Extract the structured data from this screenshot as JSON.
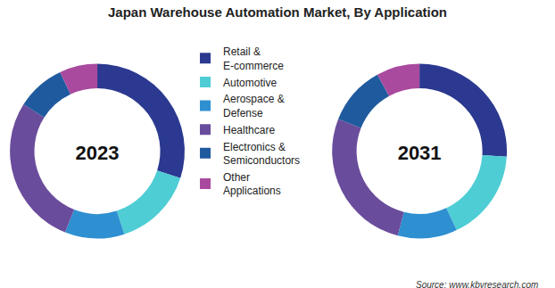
{
  "title": "Japan Warehouse Automation Market, By Application",
  "source": "Source: www.kbvresearch.com",
  "chart_data": [
    {
      "type": "pie",
      "title": "2023",
      "categories": [
        "Retail & E-commerce",
        "Automotive",
        "Aerospace & Defense",
        "Healthcare",
        "Electronics & Semiconductors",
        "Other Applications"
      ],
      "values": [
        30,
        15,
        11,
        28,
        9,
        7
      ],
      "colors": [
        "#2b3990",
        "#4ecdd4",
        "#2e8fd1",
        "#6a4c9c",
        "#1f5a9e",
        "#a94a9e"
      ]
    },
    {
      "type": "pie",
      "title": "2031",
      "categories": [
        "Retail & E-commerce",
        "Automotive",
        "Aerospace & Defense",
        "Healthcare",
        "Electronics & Semiconductors",
        "Other Applications"
      ],
      "values": [
        26,
        17,
        11,
        27,
        11,
        8
      ],
      "colors": [
        "#2b3990",
        "#4ecdd4",
        "#2e8fd1",
        "#6a4c9c",
        "#1f5a9e",
        "#a94a9e"
      ]
    }
  ]
}
